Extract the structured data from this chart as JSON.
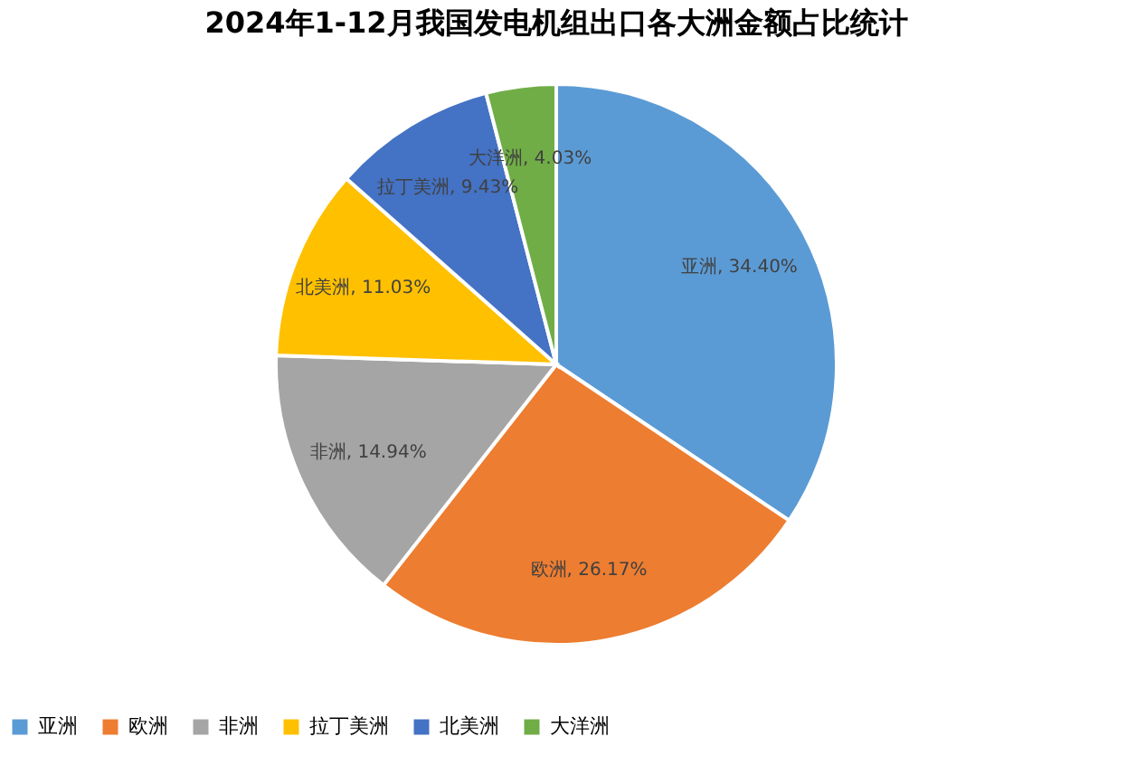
{
  "chart_data": {
    "type": "pie",
    "title": "2024年1-12月我国发电机组出口各大洲金额占比统计",
    "categories": [
      "亚洲",
      "欧洲",
      "非洲",
      "拉丁美洲",
      "北美洲",
      "大洋洲"
    ],
    "values": [
      34.4,
      26.17,
      14.94,
      11.03,
      9.43,
      4.03
    ],
    "colors": [
      "#5b9bd5",
      "#ed7d31",
      "#a5a5a5",
      "#ffc000",
      "#4472c4",
      "#70ad47"
    ],
    "value_labels": [
      "亚洲, 34.40%",
      "欧洲, 26.17%",
      "非洲, 14.94%",
      "北美洲, 11.03%",
      "拉丁美洲, 9.43%",
      "大洋洲, 4.03%"
    ],
    "legend": "bottom"
  }
}
